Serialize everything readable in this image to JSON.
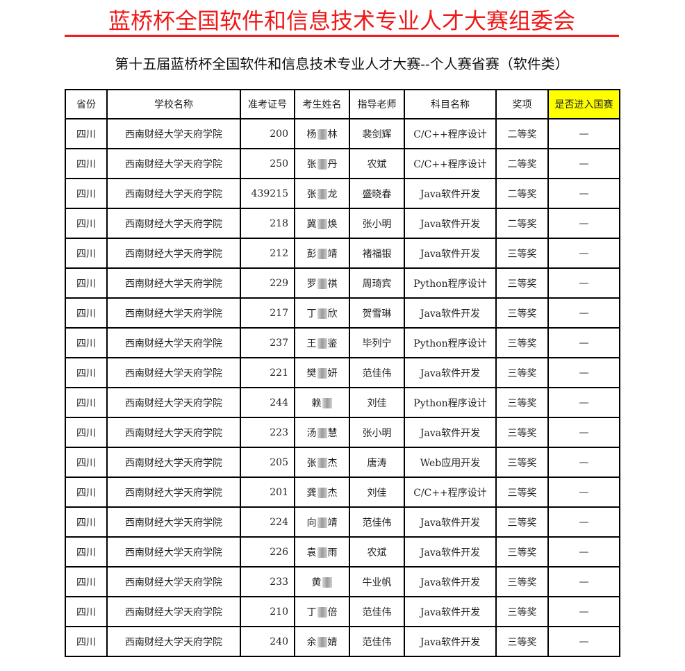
{
  "title": "蓝桥杯全国软件和信息技术专业人才大赛组委会",
  "subtitle": "第十五届蓝桥杯全国软件和信息技术专业人才大赛--个人赛省赛（软件类）",
  "colors": {
    "title": "#f01818",
    "highlight_header": "#ffff00"
  },
  "table": {
    "headers": [
      "省份",
      "学校名称",
      "准考证号",
      "考生姓名",
      "指导老师",
      "科目名称",
      "奖项",
      "是否进入国赛"
    ],
    "rows": [
      {
        "province": "四川",
        "school": "西南财经大学天府学院",
        "exam_no": "200",
        "name_a": "杨",
        "name_b": "林",
        "teacher": "裴剑辉",
        "subject": "C/C++程序设计",
        "award": "二等奖",
        "national": "—"
      },
      {
        "province": "四川",
        "school": "西南财经大学天府学院",
        "exam_no": "250",
        "name_a": "张",
        "name_b": "丹",
        "teacher": "农斌",
        "subject": "C/C++程序设计",
        "award": "二等奖",
        "national": "—"
      },
      {
        "province": "四川",
        "school": "西南财经大学天府学院",
        "exam_no": "439215",
        "name_a": "张",
        "name_b": "龙",
        "teacher": "盛晓春",
        "subject": "Java软件开发",
        "award": "二等奖",
        "national": "—"
      },
      {
        "province": "四川",
        "school": "西南财经大学天府学院",
        "exam_no": "218",
        "name_a": "冀",
        "name_b": "焕",
        "teacher": "张小明",
        "subject": "Java软件开发",
        "award": "二等奖",
        "national": "—"
      },
      {
        "province": "四川",
        "school": "西南财经大学天府学院",
        "exam_no": "212",
        "name_a": "彭",
        "name_b": "靖",
        "teacher": "褚福银",
        "subject": "Java软件开发",
        "award": "三等奖",
        "national": "—"
      },
      {
        "province": "四川",
        "school": "西南财经大学天府学院",
        "exam_no": "229",
        "name_a": "罗",
        "name_b": "祺",
        "teacher": "周琦宾",
        "subject": "Python程序设计",
        "award": "三等奖",
        "national": "—"
      },
      {
        "province": "四川",
        "school": "西南财经大学天府学院",
        "exam_no": "217",
        "name_a": "丁",
        "name_b": "欣",
        "teacher": "贺雪琳",
        "subject": "Java软件开发",
        "award": "三等奖",
        "national": "—"
      },
      {
        "province": "四川",
        "school": "西南财经大学天府学院",
        "exam_no": "237",
        "name_a": "王",
        "name_b": "鉴",
        "teacher": "毕列宁",
        "subject": "Python程序设计",
        "award": "三等奖",
        "national": "—"
      },
      {
        "province": "四川",
        "school": "西南财经大学天府学院",
        "exam_no": "221",
        "name_a": "樊",
        "name_b": "妍",
        "teacher": "范佳伟",
        "subject": "Java软件开发",
        "award": "三等奖",
        "national": "—"
      },
      {
        "province": "四川",
        "school": "西南财经大学天府学院",
        "exam_no": "244",
        "name_a": "赖",
        "name_b": "",
        "teacher": "刘佳",
        "subject": "Python程序设计",
        "award": "三等奖",
        "national": "—"
      },
      {
        "province": "四川",
        "school": "西南财经大学天府学院",
        "exam_no": "223",
        "name_a": "汤",
        "name_b": "慧",
        "teacher": "张小明",
        "subject": "Java软件开发",
        "award": "三等奖",
        "national": "—"
      },
      {
        "province": "四川",
        "school": "西南财经大学天府学院",
        "exam_no": "205",
        "name_a": "张",
        "name_b": "杰",
        "teacher": "唐涛",
        "subject": "Web应用开发",
        "award": "三等奖",
        "national": "—"
      },
      {
        "province": "四川",
        "school": "西南财经大学天府学院",
        "exam_no": "201",
        "name_a": "龚",
        "name_b": "杰",
        "teacher": "刘佳",
        "subject": "C/C++程序设计",
        "award": "三等奖",
        "national": "—"
      },
      {
        "province": "四川",
        "school": "西南财经大学天府学院",
        "exam_no": "224",
        "name_a": "向",
        "name_b": "靖",
        "teacher": "范佳伟",
        "subject": "Java软件开发",
        "award": "三等奖",
        "national": "—"
      },
      {
        "province": "四川",
        "school": "西南财经大学天府学院",
        "exam_no": "226",
        "name_a": "袁",
        "name_b": "雨",
        "teacher": "农斌",
        "subject": "Java软件开发",
        "award": "三等奖",
        "national": "—"
      },
      {
        "province": "四川",
        "school": "西南财经大学天府学院",
        "exam_no": "233",
        "name_a": "黄",
        "name_b": "",
        "teacher": "牛业帆",
        "subject": "Java软件开发",
        "award": "三等奖",
        "national": "—"
      },
      {
        "province": "四川",
        "school": "西南财经大学天府学院",
        "exam_no": "210",
        "name_a": "丁",
        "name_b": "倍",
        "teacher": "范佳伟",
        "subject": "Java软件开发",
        "award": "三等奖",
        "national": "—"
      },
      {
        "province": "四川",
        "school": "西南财经大学天府学院",
        "exam_no": "240",
        "name_a": "余",
        "name_b": "婧",
        "teacher": "范佳伟",
        "subject": "Java软件开发",
        "award": "三等奖",
        "national": "—"
      }
    ]
  }
}
